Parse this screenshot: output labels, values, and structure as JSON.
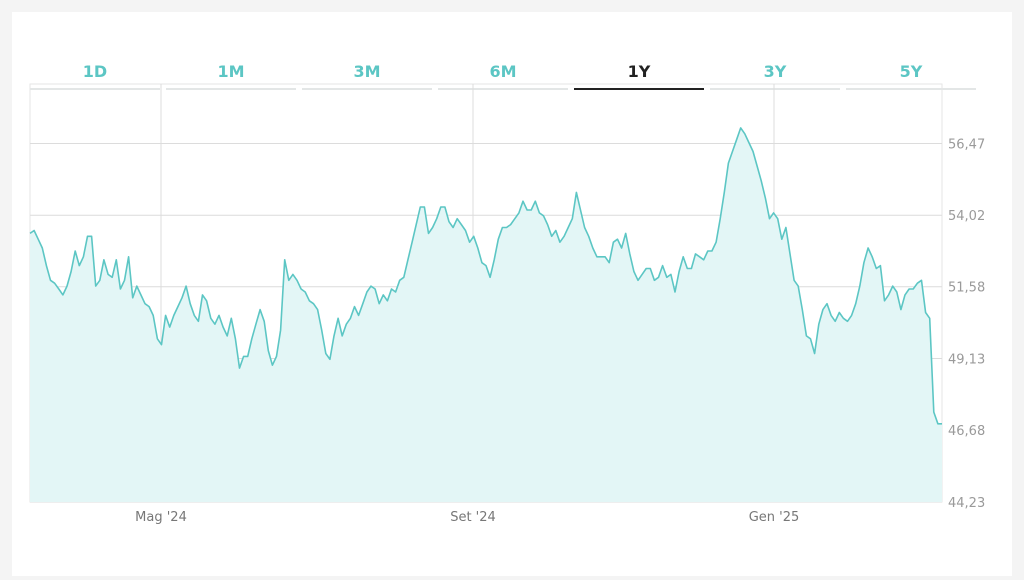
{
  "tabs": [
    {
      "label": "1D",
      "active": false
    },
    {
      "label": "1M",
      "active": false
    },
    {
      "label": "3M",
      "active": false
    },
    {
      "label": "6M",
      "active": false
    },
    {
      "label": "1Y",
      "active": true
    },
    {
      "label": "3Y",
      "active": false
    },
    {
      "label": "5Y",
      "active": false
    }
  ],
  "colors": {
    "accent": "#5cc6c4",
    "fill": "#e3f6f6",
    "grid": "#dcdcdc",
    "axis_text": "#9a9a9a",
    "active_tab": "#222222"
  },
  "chart_data": {
    "type": "area",
    "x_tick_labels": [
      "Mag '24",
      "Set '24",
      "Gen '25"
    ],
    "y_tick_labels": [
      "44,23",
      "46,68",
      "49,13",
      "51,58",
      "54,02",
      "56,47"
    ],
    "ylim": [
      44.23,
      58.5
    ],
    "grid": true,
    "y_axis_position": "right",
    "series": [
      {
        "values": [
          53.4,
          53.5,
          53.2,
          52.9,
          52.3,
          51.8,
          51.7,
          51.5,
          51.3,
          51.6,
          52.1,
          52.8,
          52.3,
          52.6,
          53.3,
          53.3,
          51.6,
          51.8,
          52.5,
          52.0,
          51.9,
          52.5,
          51.5,
          51.8,
          52.6,
          51.2,
          51.6,
          51.3,
          51.0,
          50.9,
          50.6,
          49.8,
          49.6,
          50.6,
          50.2,
          50.6,
          50.9,
          51.2,
          51.6,
          51.0,
          50.6,
          50.4,
          51.3,
          51.1,
          50.5,
          50.3,
          50.6,
          50.2,
          49.9,
          50.5,
          49.8,
          48.8,
          49.2,
          49.2,
          49.8,
          50.3,
          50.8,
          50.4,
          49.4,
          48.9,
          49.2,
          50.1,
          52.5,
          51.8,
          52.0,
          51.8,
          51.5,
          51.4,
          51.1,
          51.0,
          50.8,
          50.1,
          49.3,
          49.1,
          49.9,
          50.5,
          49.9,
          50.3,
          50.5,
          50.9,
          50.6,
          51.0,
          51.4,
          51.6,
          51.5,
          51.0,
          51.3,
          51.1,
          51.5,
          51.4,
          51.8,
          51.9,
          52.5,
          53.1,
          53.7,
          54.3,
          54.3,
          53.4,
          53.6,
          53.9,
          54.3,
          54.3,
          53.8,
          53.6,
          53.9,
          53.7,
          53.5,
          53.1,
          53.3,
          52.9,
          52.4,
          52.3,
          51.9,
          52.5,
          53.2,
          53.6,
          53.6,
          53.7,
          53.9,
          54.1,
          54.5,
          54.2,
          54.2,
          54.5,
          54.1,
          54.0,
          53.7,
          53.3,
          53.5,
          53.1,
          53.3,
          53.6,
          53.9,
          54.8,
          54.2,
          53.6,
          53.3,
          52.9,
          52.6,
          52.6,
          52.6,
          52.4,
          53.1,
          53.2,
          52.9,
          53.4,
          52.7,
          52.1,
          51.8,
          52.0,
          52.2,
          52.2,
          51.8,
          51.9,
          52.3,
          51.9,
          52.0,
          51.4,
          52.1,
          52.6,
          52.2,
          52.2,
          52.7,
          52.6,
          52.5,
          52.8,
          52.8,
          53.1,
          53.9,
          54.8,
          55.8,
          56.2,
          56.6,
          57.0,
          56.8,
          56.5,
          56.2,
          55.7,
          55.2,
          54.6,
          53.9,
          54.1,
          53.9,
          53.2,
          53.6,
          52.7,
          51.8,
          51.6,
          50.8,
          49.9,
          49.8,
          49.3,
          50.3,
          50.8,
          51.0,
          50.6,
          50.4,
          50.7,
          50.5,
          50.4,
          50.6,
          51.0,
          51.6,
          52.4,
          52.9,
          52.6,
          52.2,
          52.3,
          51.1,
          51.3,
          51.6,
          51.4,
          50.8,
          51.3,
          51.5,
          51.5,
          51.7,
          51.8,
          50.7,
          50.5,
          47.3,
          46.9,
          46.9
        ]
      }
    ]
  }
}
